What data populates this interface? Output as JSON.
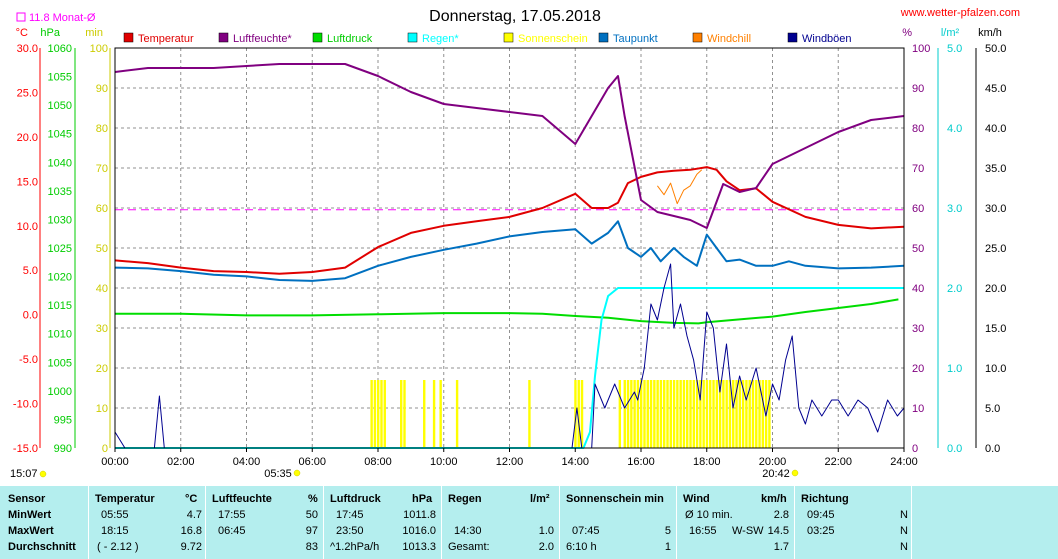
{
  "header": {
    "title": "Donnerstag, 17.05.2018",
    "site": "www.wetter-pfalzen.com",
    "monthavg": "11.8 Monat-Ø",
    "unit_c": "°C",
    "unit_hpa": "hPa",
    "unit_min": "min",
    "unit_pct": "%",
    "unit_lm2": "l/m²",
    "unit_kmh": "km/h"
  },
  "colors": {
    "temperatur": "#e00000",
    "luftfeuchte": "#800080",
    "luftdruck": "#00dd00",
    "regen": "#00ffff",
    "sonnenschein": "#ffff00",
    "taupunkt": "#0070c0",
    "windchill": "#ff8000",
    "windboeen": "#000090",
    "monthavg": "#ff00ff",
    "axis_c": "#ff0000",
    "axis_hpa": "#00cc00",
    "axis_min": "#cccc00",
    "axis_pct": "#800080",
    "axis_lm2": "#00cccc",
    "stats_bg": "#b4eeee"
  },
  "legend": [
    "Temperatur",
    "Luftfeuchte*",
    "Luftdruck",
    "Regen*",
    "Sonnenschein",
    "Taupunkt",
    "Windchill",
    "Windböen"
  ],
  "axis_ticks": {
    "c": [
      "30.0",
      "25.0",
      "20.0",
      "15.0",
      "10.0",
      "5.0",
      "0.0",
      "-5.0",
      "-10.0",
      "-15.0"
    ],
    "hpa": [
      "1060",
      "1055",
      "1050",
      "1045",
      "1040",
      "1035",
      "1030",
      "1025",
      "1020",
      "1015",
      "1010",
      "1005",
      "1000",
      "995",
      "990"
    ],
    "min": [
      "100",
      "90",
      "80",
      "70",
      "60",
      "50",
      "40",
      "30",
      "20",
      "10",
      "0"
    ],
    "pct": [
      "100",
      "90",
      "80",
      "70",
      "60",
      "50",
      "40",
      "30",
      "20",
      "10",
      "0"
    ],
    "lm2": [
      "5.0",
      "4.0",
      "3.0",
      "2.0",
      "1.0",
      "0.0"
    ],
    "kmh": [
      "50.0",
      "45.0",
      "40.0",
      "35.0",
      "30.0",
      "25.0",
      "20.0",
      "15.0",
      "10.0",
      "5.0",
      "0.0"
    ],
    "x": [
      "00:00",
      "02:00",
      "04:00",
      "06:00",
      "08:00",
      "10:00",
      "12:00",
      "14:00",
      "16:00",
      "18:00",
      "20:00",
      "22:00",
      "24:00"
    ]
  },
  "sun": {
    "sunrise": "05:35",
    "sunset": "20:42",
    "dawn": "15:07"
  },
  "chart_data": {
    "type": "line",
    "title": "Donnerstag, 17.05.2018",
    "x_unit": "hours",
    "xlim": [
      0,
      24
    ],
    "month_avg_temp": 11.8,
    "series": [
      {
        "name": "Temperatur",
        "axis": "°C",
        "ylim": [
          -15,
          30
        ],
        "points": [
          [
            0,
            6.1
          ],
          [
            1,
            5.8
          ],
          [
            2,
            5.3
          ],
          [
            3,
            4.9
          ],
          [
            4,
            4.8
          ],
          [
            5,
            4.6
          ],
          [
            6,
            4.8
          ],
          [
            7,
            5.3
          ],
          [
            8,
            7.6
          ],
          [
            9,
            9.2
          ],
          [
            10,
            10.0
          ],
          [
            11,
            10.5
          ],
          [
            12,
            11.0
          ],
          [
            13,
            12.0
          ],
          [
            14,
            13.6
          ],
          [
            14.5,
            12.0
          ],
          [
            15,
            12.0
          ],
          [
            15.3,
            12.6
          ],
          [
            15.6,
            14.8
          ],
          [
            16,
            15.5
          ],
          [
            16.5,
            16.0
          ],
          [
            17,
            16.2
          ],
          [
            17.5,
            16.3
          ],
          [
            18,
            16.6
          ],
          [
            18.3,
            16.3
          ],
          [
            18.6,
            15.0
          ],
          [
            19,
            14.0
          ],
          [
            19.5,
            14.2
          ],
          [
            20,
            12.7
          ],
          [
            21,
            11.0
          ],
          [
            22,
            10.1
          ],
          [
            23,
            9.7
          ],
          [
            24,
            9.9
          ]
        ]
      },
      {
        "name": "Luftfeuchte*",
        "axis": "%",
        "ylim": [
          0,
          100
        ],
        "points": [
          [
            0,
            94
          ],
          [
            1,
            95
          ],
          [
            2,
            95
          ],
          [
            3,
            95
          ],
          [
            4,
            95.5
          ],
          [
            5,
            96
          ],
          [
            6,
            96
          ],
          [
            7,
            96
          ],
          [
            8,
            93
          ],
          [
            9,
            89
          ],
          [
            10,
            86
          ],
          [
            11,
            85
          ],
          [
            12,
            84
          ],
          [
            13,
            83
          ],
          [
            14,
            76
          ],
          [
            15,
            90
          ],
          [
            15.3,
            93
          ],
          [
            15.5,
            83
          ],
          [
            16,
            62
          ],
          [
            16.5,
            59
          ],
          [
            17,
            58
          ],
          [
            17.5,
            57
          ],
          [
            18,
            55
          ],
          [
            18.5,
            66
          ],
          [
            19,
            64
          ],
          [
            19.5,
            65
          ],
          [
            20,
            71
          ],
          [
            21,
            75
          ],
          [
            22,
            79
          ],
          [
            23,
            82
          ],
          [
            24,
            83
          ]
        ]
      },
      {
        "name": "Luftdruck",
        "axis": "hPa",
        "ylim": [
          990,
          1060
        ],
        "points": [
          [
            0,
            1013.5
          ],
          [
            2,
            1013.5
          ],
          [
            4,
            1013.2
          ],
          [
            6,
            1013.2
          ],
          [
            8,
            1013.4
          ],
          [
            10,
            1013.6
          ],
          [
            12,
            1013.6
          ],
          [
            13,
            1013.5
          ],
          [
            14,
            1013.1
          ],
          [
            15,
            1012.8
          ],
          [
            16,
            1012.2
          ],
          [
            17,
            1011.9
          ],
          [
            17.75,
            1011.8
          ],
          [
            18,
            1012.0
          ],
          [
            19,
            1012.5
          ],
          [
            20,
            1013.0
          ],
          [
            21,
            1013.8
          ],
          [
            22,
            1014.5
          ],
          [
            23,
            1015.2
          ],
          [
            23.83,
            1016.0
          ]
        ]
      },
      {
        "name": "Regen*",
        "axis": "l/m²",
        "ylim": [
          0,
          5
        ],
        "points": [
          [
            0,
            0
          ],
          [
            14.25,
            0
          ],
          [
            14.45,
            0.2
          ],
          [
            14.6,
            0.9
          ],
          [
            14.8,
            1.6
          ],
          [
            15,
            1.9
          ],
          [
            15.3,
            2.0
          ],
          [
            24,
            2.0
          ]
        ]
      },
      {
        "name": "Sonnenschein",
        "axis": "min",
        "ylim": [
          0,
          100
        ],
        "type": "bar",
        "bar_hours": [
          7.8,
          7.9,
          8.0,
          8.1,
          8.2,
          8.7,
          8.8,
          9.4,
          9.7,
          9.9,
          10.4,
          12.6,
          14.0,
          14.1,
          14.2,
          15.35,
          15.5,
          15.6,
          15.7,
          15.8,
          15.9,
          16.0,
          16.1,
          16.2,
          16.3,
          16.4,
          16.5,
          16.6,
          16.7,
          16.8,
          16.9,
          17.0,
          17.1,
          17.2,
          17.3,
          17.4,
          17.5,
          17.6,
          17.7,
          17.8,
          17.9,
          18.0,
          18.1,
          18.2,
          18.3,
          18.4,
          18.5,
          18.6,
          18.7,
          18.8,
          18.9,
          19.0,
          19.1,
          19.2,
          19.3,
          19.4,
          19.5,
          19.6,
          19.7,
          19.8,
          19.9
        ],
        "bar_value": 5
      },
      {
        "name": "Taupunkt",
        "axis": "°C",
        "ylim": [
          -15,
          30
        ],
        "points": [
          [
            0,
            5.3
          ],
          [
            1,
            5.2
          ],
          [
            2,
            4.9
          ],
          [
            3,
            4.5
          ],
          [
            4,
            4.3
          ],
          [
            5,
            3.9
          ],
          [
            6,
            3.8
          ],
          [
            7,
            4.1
          ],
          [
            8,
            5.5
          ],
          [
            9,
            6.5
          ],
          [
            10,
            7.3
          ],
          [
            11,
            8.0
          ],
          [
            12,
            8.8
          ],
          [
            13,
            9.3
          ],
          [
            14,
            9.6
          ],
          [
            14.5,
            8.0
          ],
          [
            15,
            9.2
          ],
          [
            15.3,
            10.5
          ],
          [
            15.6,
            7.5
          ],
          [
            16,
            6.5
          ],
          [
            16.3,
            7.5
          ],
          [
            16.6,
            6.0
          ],
          [
            17,
            7.5
          ],
          [
            17.3,
            6.5
          ],
          [
            17.7,
            5.5
          ],
          [
            18,
            9.0
          ],
          [
            18.3,
            7.5
          ],
          [
            18.6,
            6.0
          ],
          [
            19,
            6.2
          ],
          [
            19.5,
            5.5
          ],
          [
            20,
            5.5
          ],
          [
            20.5,
            6.0
          ],
          [
            21,
            5.5
          ],
          [
            22,
            5.2
          ],
          [
            23,
            5.3
          ],
          [
            24,
            5.5
          ]
        ]
      },
      {
        "name": "Windchill",
        "axis": "°C",
        "ylim": [
          -15,
          30
        ],
        "points": [
          [
            16.5,
            14.5
          ],
          [
            16.7,
            13.5
          ],
          [
            16.9,
            14.8
          ],
          [
            17.1,
            12.5
          ],
          [
            17.3,
            14.0
          ],
          [
            17.5,
            14.5
          ],
          [
            17.7,
            15.8
          ],
          [
            17.85,
            16.3
          ]
        ]
      },
      {
        "name": "Windböen",
        "axis": "km/h",
        "ylim": [
          0,
          50
        ],
        "points": [
          [
            0,
            2
          ],
          [
            0.3,
            0
          ],
          [
            1.2,
            0
          ],
          [
            1.35,
            6.5
          ],
          [
            1.5,
            0
          ],
          [
            13.9,
            0
          ],
          [
            14.05,
            5
          ],
          [
            14.2,
            0
          ],
          [
            14.5,
            0
          ],
          [
            14.6,
            8
          ],
          [
            14.9,
            5
          ],
          [
            15.2,
            8
          ],
          [
            15.5,
            5
          ],
          [
            15.8,
            7
          ],
          [
            15.9,
            6
          ],
          [
            16.1,
            10
          ],
          [
            16.3,
            18
          ],
          [
            16.5,
            16
          ],
          [
            16.7,
            20
          ],
          [
            16.9,
            23
          ],
          [
            17.0,
            15
          ],
          [
            17.2,
            18
          ],
          [
            17.4,
            14
          ],
          [
            17.6,
            11
          ],
          [
            17.8,
            6
          ],
          [
            18.0,
            17
          ],
          [
            18.2,
            15
          ],
          [
            18.4,
            7
          ],
          [
            18.6,
            13
          ],
          [
            18.8,
            5
          ],
          [
            19.0,
            9
          ],
          [
            19.2,
            6
          ],
          [
            19.5,
            10
          ],
          [
            19.8,
            4
          ],
          [
            20.0,
            8
          ],
          [
            20.2,
            6
          ],
          [
            20.4,
            11
          ],
          [
            20.6,
            14
          ],
          [
            20.8,
            5
          ],
          [
            21.0,
            3
          ],
          [
            21.2,
            6
          ],
          [
            21.5,
            4
          ],
          [
            21.8,
            6
          ],
          [
            22.0,
            6
          ],
          [
            22.3,
            4
          ],
          [
            22.6,
            6
          ],
          [
            22.9,
            5
          ],
          [
            23.2,
            2
          ],
          [
            23.5,
            6
          ],
          [
            23.8,
            4
          ],
          [
            24,
            5
          ]
        ]
      }
    ]
  },
  "stats": {
    "rowlabels": {
      "title": "Sensor",
      "min": "MinWert",
      "max": "MaxWert",
      "avg": "Durchschnitt"
    },
    "temp": {
      "h1": "Temperatur",
      "h2": "°C",
      "min_time": "05:55",
      "min_val": "4.7",
      "max_time": "18:15",
      "max_val": "16.8",
      "avg_a": "( - 2.12 )",
      "avg_b": "9.72"
    },
    "feuchte": {
      "h1": "Luftfeuchte",
      "h2": "%",
      "min_time": "17:55",
      "min_val": "50",
      "max_time": "06:45",
      "max_val": "97",
      "avg_b": "83"
    },
    "druck": {
      "h1": "Luftdruck",
      "h2": "hPa",
      "min_time": "17:45",
      "min_val": "1011.8",
      "max_time": "23:50",
      "max_val": "1016.0",
      "avg_a": "^1.2hPa/h",
      "avg_b": "1013.3"
    },
    "regen": {
      "h1": "Regen",
      "h2": "l/m²",
      "max_time": "14:30",
      "max_val": "1.0",
      "avg_a": "Gesamt:",
      "avg_b": "2.0"
    },
    "sonne": {
      "h1": "Sonnenschein min",
      "max_time": "07:45",
      "max_val": "5",
      "avg_a": "6:10 h",
      "avg_b": "1"
    },
    "wind": {
      "h1": "Wind",
      "h2": "km/h",
      "min_time": "Ø 10 min.",
      "min_val": "2.8",
      "max_time": "16:55",
      "max_dir": "W-SW",
      "max_val": "14.5",
      "avg_b": "1.7"
    },
    "richtung": {
      "h1": "Richtung",
      "min_time": "09:45",
      "min_val": "N",
      "max_time": "03:25",
      "max_val": "N",
      "avg_b": "N"
    }
  }
}
